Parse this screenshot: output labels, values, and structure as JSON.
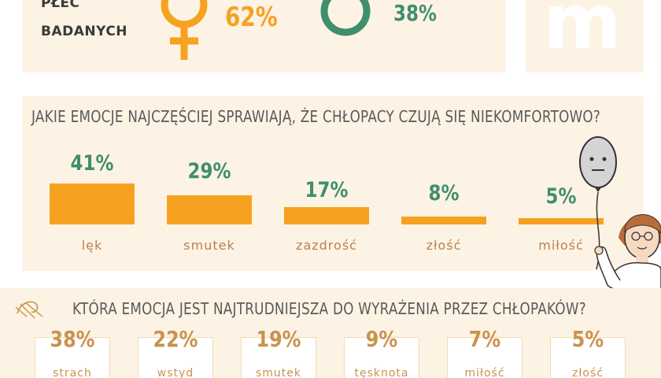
{
  "gender": {
    "label_line1": "PŁEĆ",
    "label_line2": "BADANYCH",
    "female_pct": "62%",
    "male_pct": "38%",
    "female_color": "#f6a220",
    "male_color": "#3f8f6e"
  },
  "logo_letter": "m",
  "emotions_section": {
    "title": "JAKIE EMOCJE NAJCZĘŚCIEJ SPRAWIAJĄ, ŻE CHŁOPACY CZUJĄ SIĘ NIEKOMFORTOWO?"
  },
  "hard_section": {
    "title": "KTÓRA EMOCJA JEST NAJTRUDNIEJSZA DO WYRAŻENIA PRZEZ CHŁOPAKÓW?"
  },
  "chart_data": [
    {
      "type": "bar",
      "title": "JAKIE EMOCJE NAJCZĘŚCIEJ SPRAWIAJĄ, ŻE CHŁOPACY CZUJĄ SIĘ NIEKOMFORTOWO?",
      "categories": [
        "lęk",
        "smutek",
        "zazdrość",
        "złość",
        "miłość"
      ],
      "values": [
        41,
        29,
        17,
        8,
        5
      ],
      "value_labels": [
        "41%",
        "29%",
        "17%",
        "8%",
        "5%"
      ],
      "ylim": [
        0,
        41
      ],
      "bar_color": "#f6a220",
      "label_color": "#3f8f6e"
    },
    {
      "type": "table",
      "title": "KTÓRA EMOCJA JEST NAJTRUDNIEJSZA DO WYRAŻENIA PRZEZ CHŁOPAKÓW?",
      "categories": [
        "strach",
        "wstyd",
        "smutek",
        "tęsknota",
        "miłość",
        "złość"
      ],
      "values": [
        38,
        22,
        19,
        9,
        7,
        5
      ],
      "value_labels": [
        "38%",
        "22%",
        "19%",
        "9%",
        "7%",
        "5%"
      ]
    }
  ]
}
